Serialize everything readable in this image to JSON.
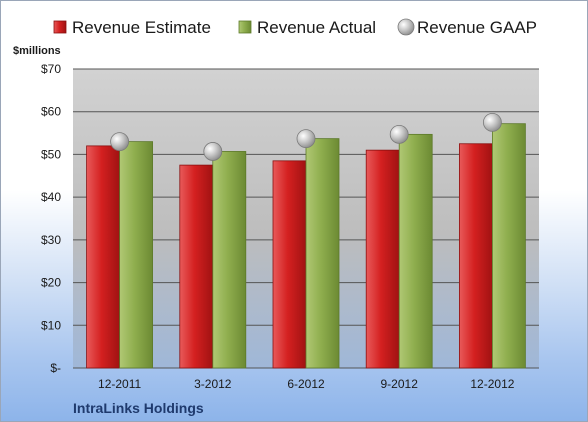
{
  "chart_data": {
    "type": "bar",
    "unit_label": "$millions",
    "footer": "IntraLinks Holdings",
    "categories": [
      "12-2011",
      "3-2012",
      "6-2012",
      "9-2012",
      "12-2012"
    ],
    "series": [
      {
        "name": "Revenue Estimate",
        "kind": "bar",
        "color": "#d42020",
        "values": [
          52,
          47.5,
          48.5,
          51,
          52.5
        ]
      },
      {
        "name": "Revenue Actual",
        "kind": "bar",
        "color": "#8fae4e",
        "values": [
          53,
          50.7,
          53.7,
          54.7,
          57.2
        ]
      },
      {
        "name": "Revenue GAAP",
        "kind": "marker",
        "color": "#b8b8b8",
        "values": [
          53,
          50.7,
          53.7,
          54.7,
          57.5
        ]
      }
    ],
    "ylim": [
      0,
      70
    ],
    "yticks": [
      0,
      10,
      20,
      30,
      40,
      50,
      60,
      70
    ],
    "ytick_labels": [
      "$-",
      "$10",
      "$20",
      "$30",
      "$40",
      "$50",
      "$60",
      "$70"
    ],
    "grid": true,
    "legend_position": "top"
  }
}
